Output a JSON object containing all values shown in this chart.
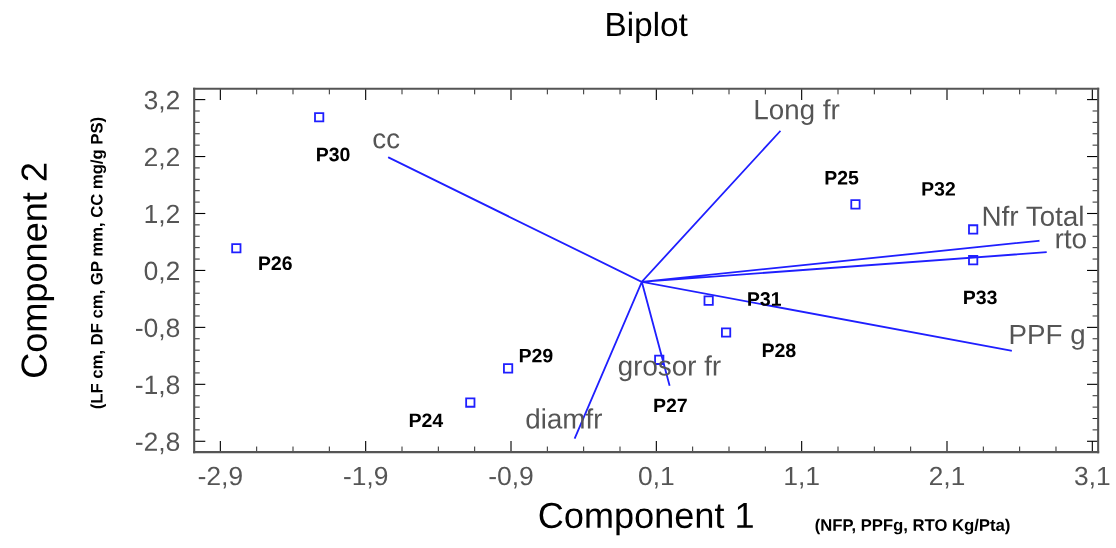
{
  "chart_data": {
    "type": "scatter",
    "title": "Biplot",
    "xlabel": "Component 1",
    "ylabel": "Component 2",
    "xlim": [
      -3.08,
      3.14
    ],
    "ylim": [
      -2.99,
      3.39
    ],
    "xticks": [
      {
        "value": -2.9,
        "label": "-2,9"
      },
      {
        "value": -1.9,
        "label": "-1,9"
      },
      {
        "value": -0.9,
        "label": "-0,9"
      },
      {
        "value": 0.1,
        "label": "0,1"
      },
      {
        "value": 1.1,
        "label": "1,1"
      },
      {
        "value": 2.1,
        "label": "2,1"
      },
      {
        "value": 3.1,
        "label": "3,1"
      }
    ],
    "yticks": [
      {
        "value": 3.2,
        "label": "3,2"
      },
      {
        "value": 2.2,
        "label": "2,2"
      },
      {
        "value": 1.2,
        "label": "1,2"
      },
      {
        "value": 0.2,
        "label": "0,2"
      },
      {
        "value": -0.8,
        "label": "-0,8"
      },
      {
        "value": -1.8,
        "label": "-1,8"
      },
      {
        "value": -2.8,
        "label": "-2,8"
      }
    ],
    "grid": false,
    "marker": "square",
    "series": [
      {
        "color": "#1f1fff",
        "x": [
          -2.22,
          -2.79,
          -0.92,
          -1.18,
          1.47,
          2.28,
          2.28,
          0.46,
          0.58,
          0.12
        ],
        "values": [
          2.89,
          0.59,
          -1.52,
          -2.12,
          1.36,
          0.92,
          0.38,
          -0.33,
          -0.89,
          -1.37
        ],
        "value_labels": [
          "P30",
          "P26",
          "P29",
          "P24",
          "P25",
          "P32",
          "P33",
          "P31",
          "P28",
          "P27"
        ]
      },
      {
        "type": "line",
        "color": "#1f1fff",
        "marker": "none",
        "x": [
          0,
          0.95,
          null,
          0,
          -1.74,
          null,
          0,
          -0.46,
          null,
          0,
          0.19,
          null,
          0,
          2.54,
          null,
          0,
          2.73,
          null,
          0,
          2.78
        ],
        "values": [
          0,
          2.64,
          null,
          0,
          2.18,
          null,
          0,
          -2.74,
          null,
          0,
          -1.81,
          null,
          0,
          -1.21,
          null,
          0,
          0.72,
          null,
          0,
          0.52
        ]
      }
    ],
    "annotations": [
      "(NFP, PPFg, RTO Kg/Pta)",
      "(LF cm, DF cm, GP mm, CC mg/g PS)",
      {
        "text": "Long fr",
        "x": 0.95,
        "y": 2.64
      },
      {
        "text": "cc",
        "x": -1.74,
        "y": 2.18
      },
      {
        "text": "diamfr",
        "x": -0.46,
        "y": -2.74
      },
      {
        "text": "grosor fr",
        "x": 0.19,
        "y": -1.81
      },
      {
        "text": "PPF g",
        "x": 2.54,
        "y": -1.21
      },
      {
        "text": "Nfr Total",
        "x": 2.73,
        "y": 0.72
      },
      {
        "text": "rto",
        "x": 2.78,
        "y": 0.52
      }
    ]
  }
}
